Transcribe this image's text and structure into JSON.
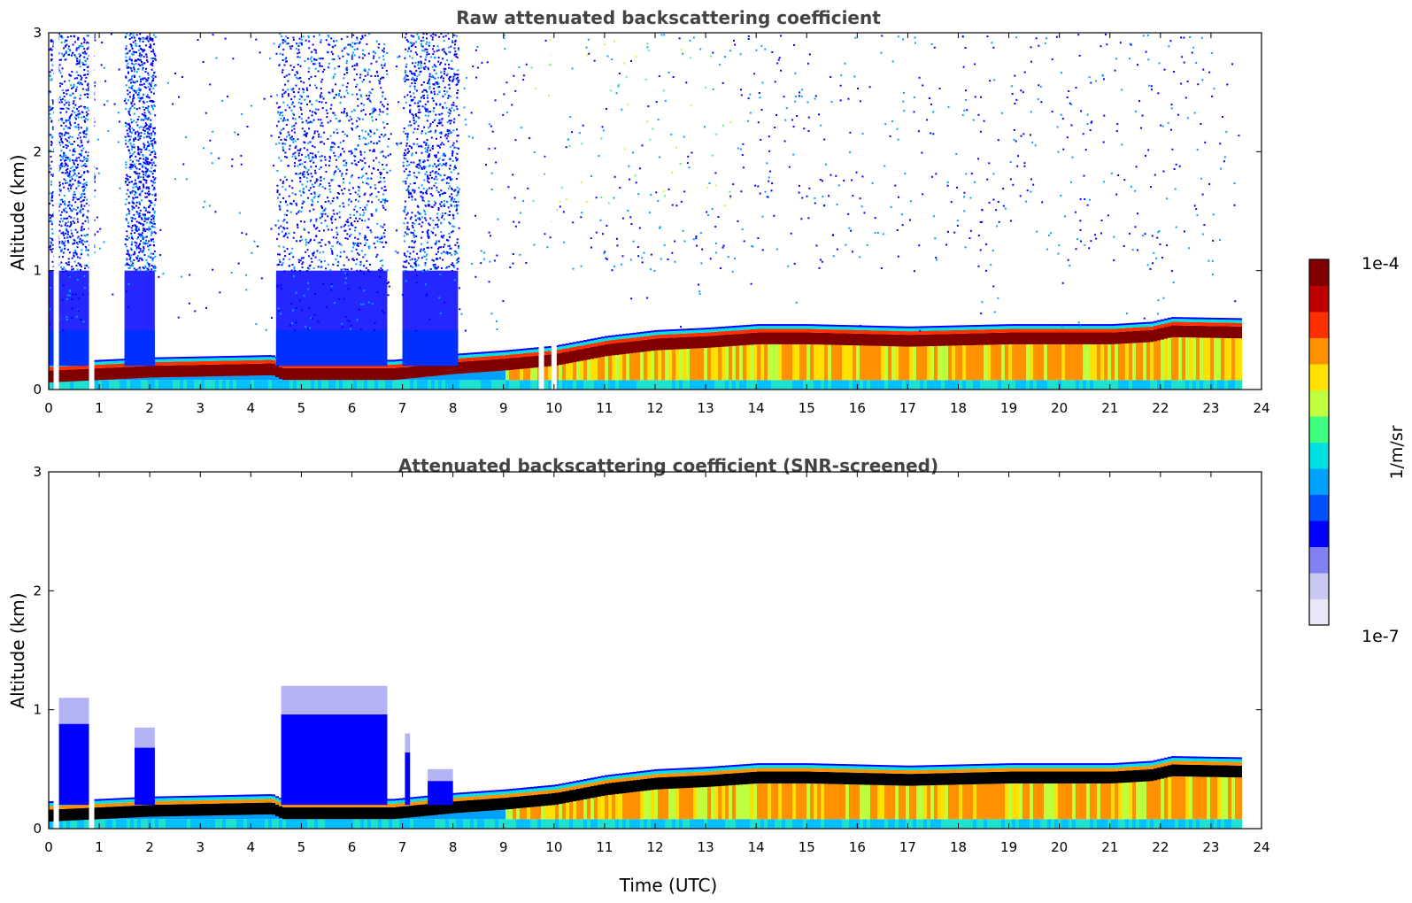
{
  "chart_data": [
    {
      "type": "heatmap",
      "title": "Raw attenuated backscattering coefficient",
      "xlabel": "",
      "ylabel": "Altitude (km)",
      "xlim": [
        0,
        24
      ],
      "ylim": [
        0,
        3
      ],
      "x_ticks": [
        "0",
        "1",
        "2",
        "3",
        "4",
        "5",
        "6",
        "7",
        "8",
        "9",
        "10",
        "11",
        "12",
        "13",
        "14",
        "15",
        "16",
        "17",
        "18",
        "19",
        "20",
        "21",
        "22",
        "23",
        "24"
      ],
      "y_ticks": [
        "0",
        "1",
        "2",
        "3"
      ],
      "data_end_hour": 23.55,
      "gap_hours": [
        0.15,
        0.85,
        9.75,
        10.0
      ],
      "layer_top_km": [
        [
          0,
          0.18
        ],
        [
          1,
          0.2
        ],
        [
          2,
          0.22
        ],
        [
          4.4,
          0.24
        ],
        [
          4.6,
          0.2
        ],
        [
          6.8,
          0.2
        ],
        [
          8,
          0.25
        ],
        [
          9,
          0.28
        ],
        [
          10,
          0.32
        ],
        [
          11,
          0.4
        ],
        [
          12,
          0.45
        ],
        [
          13,
          0.47
        ],
        [
          14,
          0.5
        ],
        [
          15,
          0.5
        ],
        [
          17,
          0.48
        ],
        [
          19,
          0.5
        ],
        [
          21,
          0.5
        ],
        [
          21.8,
          0.52
        ],
        [
          22.2,
          0.56
        ],
        [
          23.55,
          0.55
        ]
      ],
      "aerosol_plume_hours": [
        [
          0,
          0.9
        ],
        [
          1.5,
          2.1
        ],
        [
          4.5,
          6.7
        ],
        [
          7.0,
          8.1
        ]
      ],
      "noise_region_hours": [
        0,
        23.55
      ]
    },
    {
      "type": "heatmap",
      "title": "Attenuated backscattering coefficient (SNR-screened)",
      "xlabel": "Time (UTC)",
      "ylabel": "Altitude (km)",
      "xlim": [
        0,
        24
      ],
      "ylim": [
        0,
        3
      ],
      "x_ticks": [
        "0",
        "1",
        "2",
        "3",
        "4",
        "5",
        "6",
        "7",
        "8",
        "9",
        "10",
        "11",
        "12",
        "13",
        "14",
        "15",
        "16",
        "17",
        "18",
        "19",
        "20",
        "21",
        "22",
        "23",
        "24"
      ],
      "y_ticks": [
        "0",
        "1",
        "2",
        "3"
      ],
      "data_end_hour": 23.55,
      "screened_plume_tops_km": [
        [
          0.2,
          0.9,
          1.1
        ],
        [
          1.7,
          2.1,
          0.85
        ],
        [
          4.6,
          6.7,
          1.2
        ],
        [
          7.05,
          7.15,
          0.8
        ],
        [
          7.5,
          8.0,
          0.5
        ]
      ]
    }
  ],
  "colorbar": {
    "label": "1/m/sr",
    "max_label": "1e-4",
    "min_label": "1e-7",
    "colormap": "jet",
    "colors": [
      "#e8e8f8",
      "#c8c8f0",
      "#8080f0",
      "#0000ff",
      "#0050ff",
      "#00a0ff",
      "#00e0e0",
      "#40ff80",
      "#c0ff40",
      "#ffe000",
      "#ff9000",
      "#ff3000",
      "#c00000",
      "#800000"
    ]
  }
}
